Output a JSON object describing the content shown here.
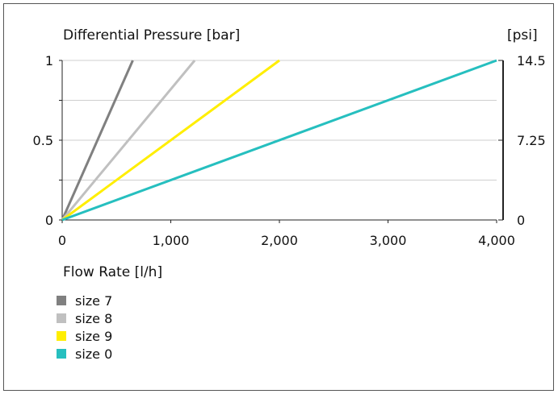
{
  "chart_data": {
    "type": "line",
    "title": "Differential Pressure [bar]",
    "xlabel": "Flow Rate [l/h]",
    "ylabel": "Differential Pressure [bar]",
    "y2label": "[psi]",
    "xlim": [
      0,
      4000
    ],
    "ylim": [
      0,
      1
    ],
    "y2lim": [
      0,
      14.5
    ],
    "xticks": [
      "0",
      "1,000",
      "2,000",
      "3,000",
      "4,000"
    ],
    "xtick_values": [
      0,
      1000,
      2000,
      3000,
      4000
    ],
    "yticks": [
      "0",
      "0.5",
      "1"
    ],
    "ytick_values": [
      0,
      0.5,
      1
    ],
    "y2ticks": [
      "0",
      "7.25",
      "14.5"
    ],
    "y2tick_values": [
      0,
      7.25,
      14.5
    ],
    "grid": true,
    "legend_position": "bottom-left",
    "series": [
      {
        "name": "size 7",
        "color": "#808080",
        "points": [
          [
            0,
            0
          ],
          [
            650,
            1
          ]
        ]
      },
      {
        "name": "size 8",
        "color": "#c0c0c0",
        "points": [
          [
            0,
            0
          ],
          [
            1220,
            1
          ]
        ]
      },
      {
        "name": "size 9",
        "color": "#ffee00",
        "points": [
          [
            0,
            0
          ],
          [
            2000,
            1
          ]
        ]
      },
      {
        "name": "size 0",
        "color": "#26bfbf",
        "points": [
          [
            0,
            0
          ],
          [
            4000,
            1
          ]
        ]
      }
    ]
  }
}
